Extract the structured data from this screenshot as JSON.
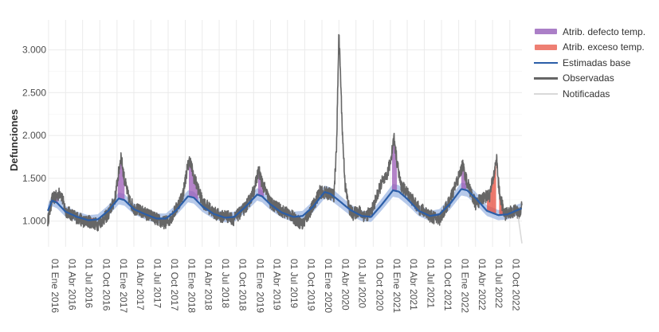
{
  "chart_data": {
    "type": "line",
    "title": "",
    "xlabel": "",
    "ylabel": "Defunciones",
    "ylim": [
      700,
      3350
    ],
    "xlim": [
      "2015-12-28",
      "2022-12-05"
    ],
    "grid": true,
    "legend_position": "right",
    "y_ticks": [
      {
        "value": 1000,
        "label": "1.000"
      },
      {
        "value": 1500,
        "label": "1.500"
      },
      {
        "value": 2000,
        "label": "2.000"
      },
      {
        "value": 2500,
        "label": "2.500"
      },
      {
        "value": 3000,
        "label": "3.000"
      }
    ],
    "x_ticks": [
      {
        "date": "2016-01-01",
        "label": "01 Ene 2016"
      },
      {
        "date": "2016-04-01",
        "label": "01 Abr 2016"
      },
      {
        "date": "2016-07-01",
        "label": "01 Jul 2016"
      },
      {
        "date": "2016-10-01",
        "label": "01 Oct 2016"
      },
      {
        "date": "2017-01-01",
        "label": "01 Ene 2017"
      },
      {
        "date": "2017-04-01",
        "label": "01 Abr 2017"
      },
      {
        "date": "2017-07-01",
        "label": "01 Jul 2017"
      },
      {
        "date": "2017-10-01",
        "label": "01 Oct 2017"
      },
      {
        "date": "2018-01-01",
        "label": "01 Ene 2018"
      },
      {
        "date": "2018-04-01",
        "label": "01 Abr 2018"
      },
      {
        "date": "2018-07-01",
        "label": "01 Jul 2018"
      },
      {
        "date": "2018-10-01",
        "label": "01 Oct 2018"
      },
      {
        "date": "2019-01-01",
        "label": "01 Ene 2019"
      },
      {
        "date": "2019-04-01",
        "label": "01 Abr 2019"
      },
      {
        "date": "2019-07-01",
        "label": "01 Jul 2019"
      },
      {
        "date": "2019-10-01",
        "label": "01 Oct 2019"
      },
      {
        "date": "2020-01-01",
        "label": "01 Ene 2020"
      },
      {
        "date": "2020-04-01",
        "label": "01 Abr 2020"
      },
      {
        "date": "2020-07-01",
        "label": "01 Jul 2020"
      },
      {
        "date": "2020-10-01",
        "label": "01 Oct 2020"
      },
      {
        "date": "2021-01-01",
        "label": "01 Ene 2021"
      },
      {
        "date": "2021-04-01",
        "label": "01 Abr 2021"
      },
      {
        "date": "2021-07-01",
        "label": "01 Jul 2021"
      },
      {
        "date": "2021-10-01",
        "label": "01 Oct 2021"
      },
      {
        "date": "2022-01-01",
        "label": "01 Ene 2022"
      },
      {
        "date": "2022-04-01",
        "label": "01 Abr 2022"
      },
      {
        "date": "2022-07-01",
        "label": "01 Jul 2022"
      },
      {
        "date": "2022-10-01",
        "label": "01 Oct 2022"
      }
    ],
    "series": [
      {
        "name": "Estimadas base",
        "color": "#2b5ea8",
        "band_color": "#a9c0e6",
        "points": [
          [
            "2015-12-28",
            1120,
            1060,
            1190
          ],
          [
            "2016-01-20",
            1240,
            1175,
            1310
          ],
          [
            "2016-02-15",
            1215,
            1150,
            1285
          ],
          [
            "2016-04-01",
            1110,
            1050,
            1175
          ],
          [
            "2016-06-01",
            1050,
            995,
            1110
          ],
          [
            "2016-08-01",
            1010,
            955,
            1070
          ],
          [
            "2016-09-20",
            1020,
            965,
            1080
          ],
          [
            "2016-11-15",
            1120,
            1060,
            1185
          ],
          [
            "2017-01-10",
            1265,
            1195,
            1335
          ],
          [
            "2017-02-10",
            1245,
            1180,
            1315
          ],
          [
            "2017-04-01",
            1140,
            1080,
            1205
          ],
          [
            "2017-06-01",
            1080,
            1020,
            1140
          ],
          [
            "2017-08-01",
            1030,
            975,
            1090
          ],
          [
            "2017-09-20",
            1030,
            975,
            1090
          ],
          [
            "2017-11-15",
            1130,
            1070,
            1195
          ],
          [
            "2018-01-15",
            1290,
            1220,
            1360
          ],
          [
            "2018-02-15",
            1275,
            1205,
            1345
          ],
          [
            "2018-04-01",
            1175,
            1110,
            1240
          ],
          [
            "2018-06-01",
            1085,
            1025,
            1145
          ],
          [
            "2018-08-01",
            1040,
            985,
            1100
          ],
          [
            "2018-09-20",
            1050,
            990,
            1110
          ],
          [
            "2018-11-15",
            1160,
            1095,
            1225
          ],
          [
            "2019-01-20",
            1310,
            1240,
            1385
          ],
          [
            "2019-02-15",
            1290,
            1220,
            1360
          ],
          [
            "2019-04-01",
            1195,
            1130,
            1260
          ],
          [
            "2019-06-01",
            1100,
            1040,
            1160
          ],
          [
            "2019-08-01",
            1050,
            990,
            1110
          ],
          [
            "2019-09-20",
            1060,
            1000,
            1120
          ],
          [
            "2019-11-15",
            1170,
            1105,
            1235
          ],
          [
            "2020-01-15",
            1340,
            1265,
            1415
          ],
          [
            "2020-02-15",
            1320,
            1245,
            1395
          ],
          [
            "2020-04-01",
            1240,
            1170,
            1310
          ],
          [
            "2020-06-01",
            1130,
            1065,
            1195
          ],
          [
            "2020-08-01",
            1060,
            1000,
            1120
          ],
          [
            "2020-09-20",
            1050,
            990,
            1110
          ],
          [
            "2020-11-15",
            1190,
            1125,
            1260
          ],
          [
            "2021-01-15",
            1360,
            1285,
            1435
          ],
          [
            "2021-02-15",
            1345,
            1270,
            1420
          ],
          [
            "2021-04-01",
            1260,
            1190,
            1330
          ],
          [
            "2021-06-01",
            1120,
            1060,
            1185
          ],
          [
            "2021-08-01",
            1060,
            1000,
            1120
          ],
          [
            "2021-09-20",
            1080,
            1020,
            1140
          ],
          [
            "2021-11-15",
            1200,
            1135,
            1270
          ],
          [
            "2022-01-15",
            1375,
            1300,
            1450
          ],
          [
            "2022-02-15",
            1360,
            1285,
            1435
          ],
          [
            "2022-04-01",
            1270,
            1200,
            1340
          ],
          [
            "2022-06-01",
            1120,
            1060,
            1185
          ],
          [
            "2022-08-01",
            1070,
            1010,
            1130
          ],
          [
            "2022-09-20",
            1080,
            1020,
            1140
          ],
          [
            "2022-11-01",
            1120,
            1060,
            1185
          ],
          [
            "2022-12-05",
            1150,
            1090,
            1215
          ]
        ]
      },
      {
        "name": "Observadas",
        "color": "#666666",
        "points": [
          [
            "2015-12-28",
            1000
          ],
          [
            "2016-01-20",
            1260
          ],
          [
            "2016-02-15",
            1290
          ],
          [
            "2016-03-05",
            1340
          ],
          [
            "2016-04-01",
            1120
          ],
          [
            "2016-06-01",
            1040
          ],
          [
            "2016-07-15",
            990
          ],
          [
            "2016-08-01",
            1000
          ],
          [
            "2016-09-20",
            960
          ],
          [
            "2016-11-15",
            1080
          ],
          [
            "2016-12-20",
            1250
          ],
          [
            "2017-01-05",
            1500
          ],
          [
            "2017-01-22",
            1760
          ],
          [
            "2017-02-10",
            1480
          ],
          [
            "2017-03-05",
            1260
          ],
          [
            "2017-04-01",
            1150
          ],
          [
            "2017-06-01",
            1090
          ],
          [
            "2017-07-20",
            1040
          ],
          [
            "2017-09-01",
            980
          ],
          [
            "2017-10-05",
            1000
          ],
          [
            "2017-11-15",
            1150
          ],
          [
            "2017-12-20",
            1320
          ],
          [
            "2018-01-10",
            1600
          ],
          [
            "2018-01-25",
            1720
          ],
          [
            "2018-02-15",
            1520
          ],
          [
            "2018-03-10",
            1380
          ],
          [
            "2018-04-01",
            1230
          ],
          [
            "2018-06-01",
            1100
          ],
          [
            "2018-07-15",
            1050
          ],
          [
            "2018-08-01",
            1070
          ],
          [
            "2018-09-15",
            1020
          ],
          [
            "2018-11-15",
            1150
          ],
          [
            "2018-12-20",
            1280
          ],
          [
            "2019-01-10",
            1420
          ],
          [
            "2019-01-28",
            1600
          ],
          [
            "2019-02-15",
            1450
          ],
          [
            "2019-03-10",
            1330
          ],
          [
            "2019-04-01",
            1210
          ],
          [
            "2019-06-01",
            1120
          ],
          [
            "2019-07-15",
            1080
          ],
          [
            "2019-08-01",
            1040
          ],
          [
            "2019-09-20",
            960
          ],
          [
            "2019-11-15",
            1180
          ],
          [
            "2019-12-20",
            1340
          ],
          [
            "2020-01-15",
            1330
          ],
          [
            "2020-02-15",
            1320
          ],
          [
            "2020-03-05",
            1300
          ],
          [
            "2020-03-20",
            1900
          ],
          [
            "2020-03-31",
            3200
          ],
          [
            "2020-04-08",
            2800
          ],
          [
            "2020-04-20",
            2000
          ],
          [
            "2020-05-05",
            1400
          ],
          [
            "2020-05-25",
            1150
          ],
          [
            "2020-06-15",
            1080
          ],
          [
            "2020-07-15",
            1120
          ],
          [
            "2020-08-15",
            1060
          ],
          [
            "2020-09-20",
            1100
          ],
          [
            "2020-10-20",
            1280
          ],
          [
            "2020-11-15",
            1450
          ],
          [
            "2020-12-10",
            1500
          ],
          [
            "2021-01-01",
            1700
          ],
          [
            "2021-01-20",
            1980
          ],
          [
            "2021-02-05",
            1700
          ],
          [
            "2021-02-25",
            1420
          ],
          [
            "2021-04-01",
            1330
          ],
          [
            "2021-05-01",
            1240
          ],
          [
            "2021-06-01",
            1150
          ],
          [
            "2021-07-15",
            1100
          ],
          [
            "2021-08-01",
            1060
          ],
          [
            "2021-09-20",
            1020
          ],
          [
            "2021-11-15",
            1240
          ],
          [
            "2021-12-20",
            1450
          ],
          [
            "2022-01-10",
            1560
          ],
          [
            "2022-01-22",
            1660
          ],
          [
            "2022-02-15",
            1450
          ],
          [
            "2022-03-10",
            1320
          ],
          [
            "2022-04-01",
            1200
          ],
          [
            "2022-05-15",
            1280
          ],
          [
            "2022-06-15",
            1300
          ],
          [
            "2022-07-10",
            1560
          ],
          [
            "2022-07-22",
            1750
          ],
          [
            "2022-08-05",
            1350
          ],
          [
            "2022-09-01",
            1080
          ],
          [
            "2022-10-01",
            1100
          ],
          [
            "2022-11-01",
            1120
          ],
          [
            "2022-11-20",
            1080
          ],
          [
            "2022-12-05",
            1200
          ]
        ]
      },
      {
        "name": "Notificadas",
        "color": "#d9d9d9",
        "points": [
          [
            "2022-11-15",
            1050
          ],
          [
            "2022-12-05",
            740
          ]
        ]
      }
    ],
    "attribution": [
      {
        "name": "Atrib. defecto temp.",
        "color": "#9b59b6",
        "swatch_color": "#ab7fc7",
        "regions": [
          [
            "2016-01-15",
            "2016-02-20"
          ],
          [
            "2017-01-05",
            "2017-02-10"
          ],
          [
            "2018-01-20",
            "2018-03-10"
          ],
          [
            "2019-01-25",
            "2019-02-25"
          ],
          [
            "2021-01-10",
            "2021-02-05"
          ],
          [
            "2022-01-15",
            "2022-02-10"
          ]
        ]
      },
      {
        "name": "Atrib. exceso temp.",
        "color": "#e74c3c",
        "swatch_color": "#ee7f73",
        "regions": [
          [
            "2016-07-20",
            "2016-08-30"
          ],
          [
            "2017-06-20",
            "2017-08-10"
          ],
          [
            "2018-07-25",
            "2018-08-10"
          ],
          [
            "2019-06-25",
            "2019-07-20"
          ],
          [
            "2020-07-20",
            "2020-08-15"
          ],
          [
            "2021-07-10",
            "2021-08-10"
          ],
          [
            "2022-06-01",
            "2022-07-20"
          ],
          [
            "2022-08-05",
            "2022-08-30"
          ]
        ]
      }
    ]
  },
  "legend": {
    "items": [
      {
        "label": "Atrib. defecto temp.",
        "kind": "swatch",
        "color": "#ab7fc7"
      },
      {
        "label": "Atrib. exceso temp.",
        "kind": "swatch",
        "color": "#ee7f73"
      },
      {
        "label": "Estimadas base",
        "kind": "line",
        "color": "#2b5ea8"
      },
      {
        "label": "Observadas",
        "kind": "line",
        "color": "#666666"
      },
      {
        "label": "Notificadas",
        "kind": "line",
        "color": "#d9d9d9"
      }
    ]
  }
}
